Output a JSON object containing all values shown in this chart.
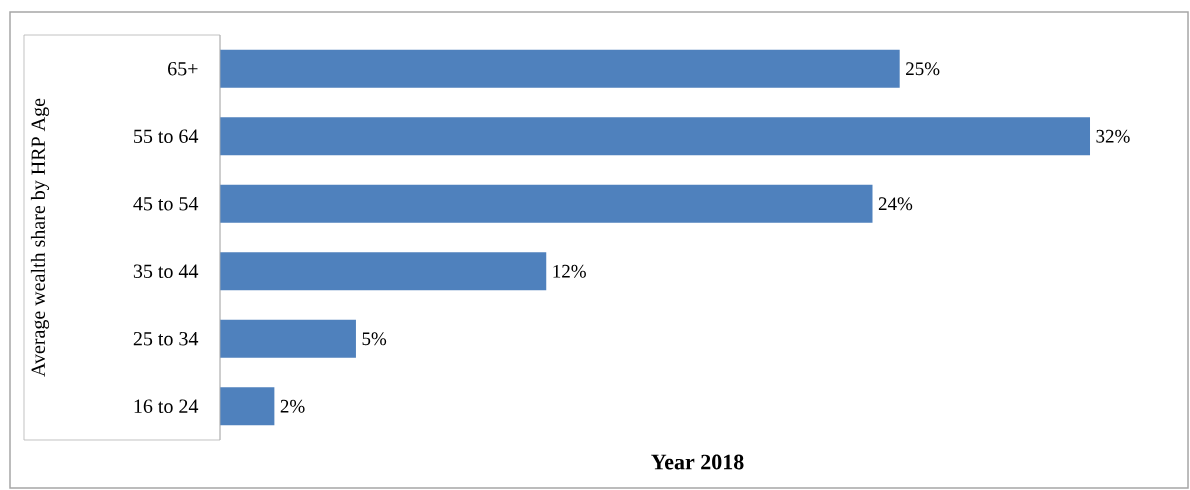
{
  "chart_data": {
    "type": "bar",
    "orientation": "horizontal",
    "xlabel": "Year 2018",
    "ylabel": "Average wealth share by HRP Age",
    "categories": [
      "65+",
      "55 to 64",
      "45 to 54",
      "35 to 44",
      "25 to 34",
      "16 to 24"
    ],
    "values": [
      25,
      32,
      24,
      12,
      5,
      2
    ],
    "value_labels": [
      "25%",
      "32%",
      "24%",
      "12%",
      "5%",
      "2%"
    ],
    "color": "#4f81bd",
    "tick_labels": "y"
  }
}
